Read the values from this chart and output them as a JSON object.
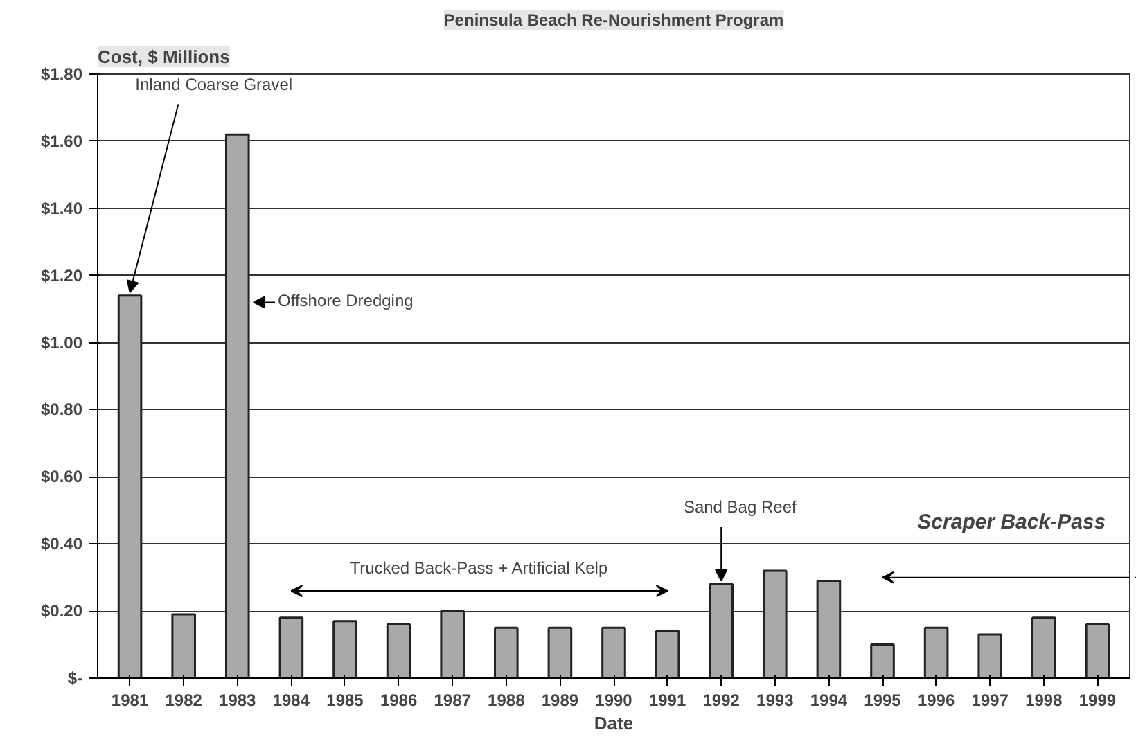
{
  "chart_data": {
    "type": "bar",
    "title": "Peninsula Beach Re-Nourishment Program",
    "ylabel": "Cost, $ Millions",
    "xlabel": "Date",
    "categories": [
      "1981",
      "1982",
      "1983",
      "1984",
      "1985",
      "1986",
      "1987",
      "1988",
      "1989",
      "1990",
      "1991",
      "1992",
      "1993",
      "1994",
      "1995",
      "1996",
      "1997",
      "1998",
      "1999"
    ],
    "values": [
      1.14,
      0.19,
      1.62,
      0.18,
      0.17,
      0.16,
      0.2,
      0.15,
      0.15,
      0.15,
      0.14,
      0.28,
      0.32,
      0.29,
      0.1,
      0.15,
      0.13,
      0.18,
      0.16
    ],
    "color": "#a9a9a9",
    "ylim": [
      0,
      1.8
    ],
    "yticks": [
      {
        "value": 0,
        "label": "$-"
      },
      {
        "value": 0.2,
        "label": "$0.20"
      },
      {
        "value": 0.4,
        "label": "$0.40"
      },
      {
        "value": 0.6,
        "label": "$0.60"
      },
      {
        "value": 0.8,
        "label": "$0.80"
      },
      {
        "value": 1.0,
        "label": "$1.00"
      },
      {
        "value": 1.2,
        "label": "$1.20"
      },
      {
        "value": 1.4,
        "label": "$1.40"
      },
      {
        "value": 1.6,
        "label": "$1.60"
      },
      {
        "value": 1.8,
        "label": "$1.80"
      }
    ],
    "grid": "y",
    "annotations": [
      {
        "text": "Inland Coarse Gravel",
        "x": "1981",
        "y": 1.14
      },
      "Offshore Dredging",
      {
        "text": "Sand Bag Reef",
        "x": "1992",
        "y": 0.28
      },
      "Trucked Back-Pass + Artificial Kelp",
      "Scraper Back-Pass"
    ]
  }
}
